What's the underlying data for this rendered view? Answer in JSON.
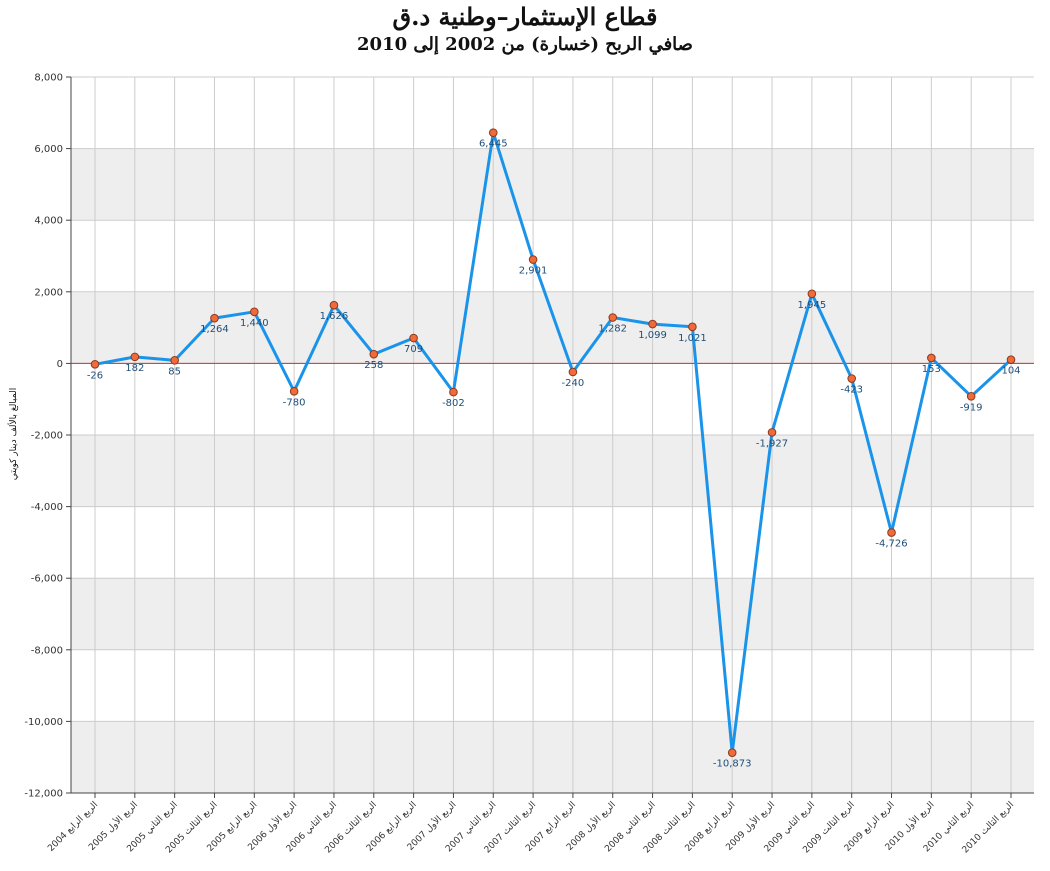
{
  "chart_data": {
    "type": "line",
    "title": "قطاع الإستثمار–وطنية د.ق",
    "subtitle": "صافي الربح (خسارة) من 2002 إلى 2010",
    "ylabel": "المبالغ بالألف دينار كويتي",
    "xlabel": "",
    "ylim": [
      -12000,
      8000
    ],
    "ytick_step": 2000,
    "grid": true,
    "legend": "none",
    "categories": [
      "الربع الرابع 2004",
      "الربع الأول 2005",
      "الربع الثاني 2005",
      "الربع الثالث 2005",
      "الربع الرابع 2005",
      "الربع الأول 2006",
      "الربع الثاني 2006",
      "الربع الثالث 2006",
      "الربع الرابع 2006",
      "الربع الأول 2007",
      "الربع الثاني 2007",
      "الربع الثالث 2007",
      "الربع الرابع 2007",
      "الربع الأول 2008",
      "الربع الثاني 2008",
      "الربع الثالث 2008",
      "الربع الرابع 2008",
      "الربع الأول 2009",
      "الربع الثاني 2009",
      "الربع الثالث 2009",
      "الربع الرابع 2009",
      "الربع الأول 2010",
      "الربع الثاني 2010",
      "الربع الثالث 2010"
    ],
    "values": [
      -26,
      182,
      85,
      1264,
      1440,
      -780,
      1626,
      258,
      709,
      -802,
      6445,
      2901,
      -240,
      1282,
      1099,
      1021,
      -10873,
      -1927,
      1945,
      -423,
      -4726,
      153,
      -919,
      104
    ],
    "value_labels": [
      "-26",
      "182",
      "85",
      "1,264",
      "1,440",
      "-780",
      "1,626",
      "258",
      "709",
      "-802",
      "6,445",
      "2,901",
      "-240",
      "1,282",
      "1,099",
      "1,021",
      "-10,873",
      "-1,927",
      "1,945",
      "-423",
      "-4,726",
      "153",
      "-919",
      "104"
    ],
    "colors": {
      "line": "#1a94ea",
      "marker_fill": "#f06a3a",
      "marker_stroke": "#8a3a1c",
      "zero_line": "#e8262b",
      "band": "#eeeeee",
      "grid": "#cccccc",
      "label": "#1f4e79"
    }
  }
}
